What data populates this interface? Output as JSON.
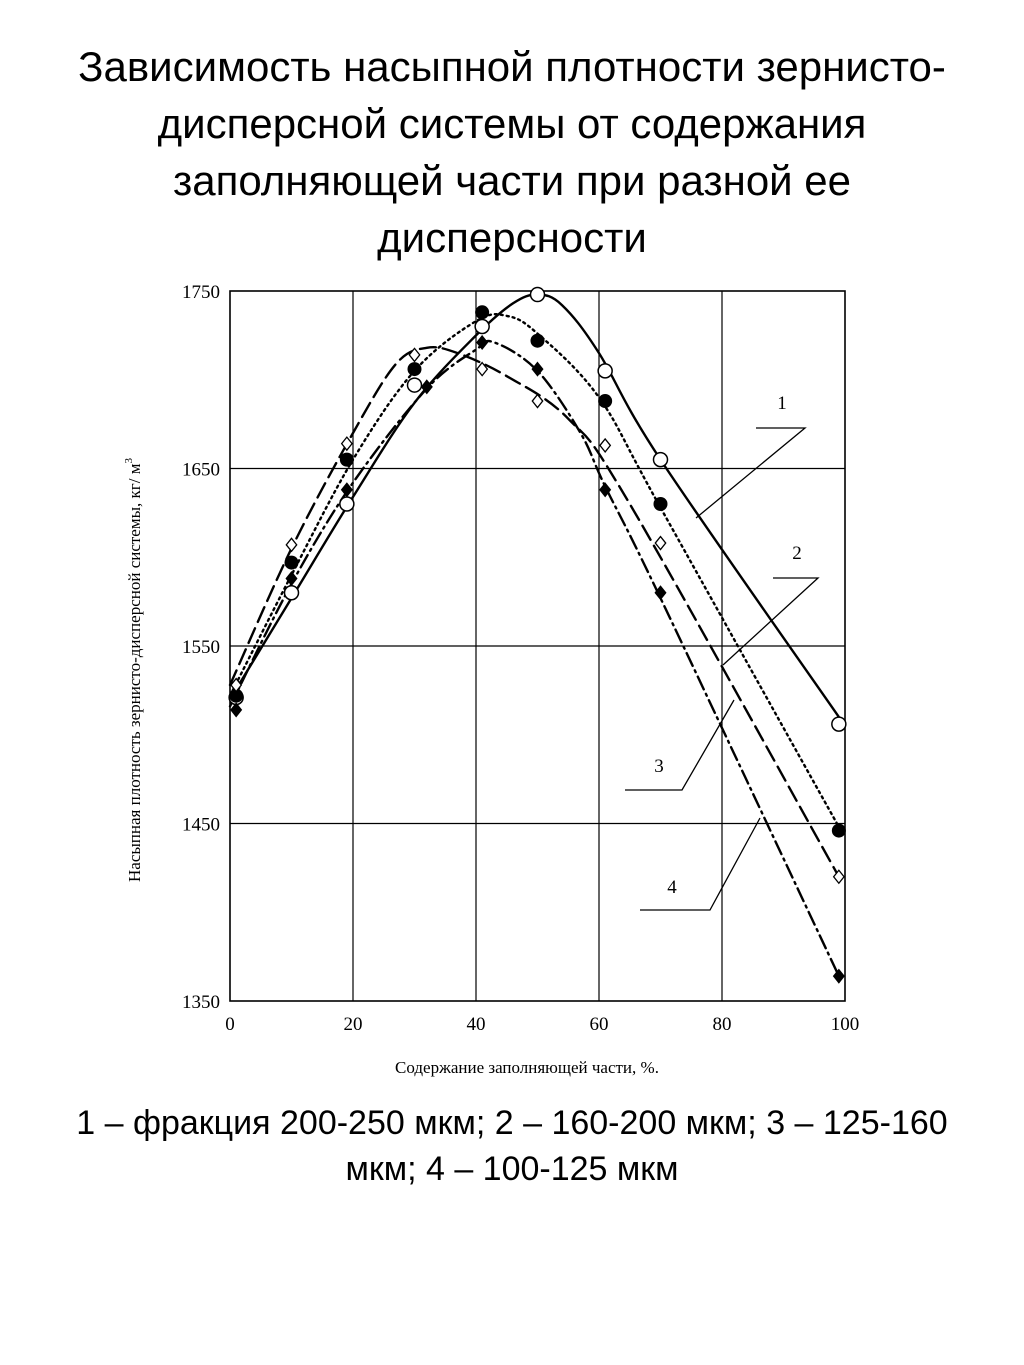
{
  "title": "Зависимость насыпной плотности зернисто-дисперсной системы от содержания заполняющей части при разной ее дисперсности",
  "caption": "1 – фракция 200-250 мкм; 2 – 160-200 мкм; 3 – 125-160 мкм; 4 – 100-125 мкм",
  "chart_data": {
    "type": "line",
    "xlabel": "Содержание заполняющей части, %.",
    "ylabel": "Насыпная плотность зернисто-дисперсной системы, кг/ м",
    "ylabel_sup": "3",
    "xlim": [
      0,
      100
    ],
    "ylim": [
      1350,
      1750
    ],
    "xticks": [
      0,
      20,
      40,
      60,
      80,
      100
    ],
    "yticks": [
      1350,
      1450,
      1550,
      1650,
      1750
    ],
    "grid": true,
    "series": [
      {
        "name": "1",
        "marker": "open-circle",
        "line": "solid",
        "points": [
          [
            1,
            1521
          ],
          [
            10,
            1580
          ],
          [
            19,
            1630
          ],
          [
            30,
            1697
          ],
          [
            41,
            1730
          ],
          [
            50,
            1748
          ],
          [
            61,
            1705
          ],
          [
            70,
            1655
          ],
          [
            99,
            1506
          ]
        ],
        "curve": [
          [
            0,
            1520
          ],
          [
            10,
            1577
          ],
          [
            20,
            1634
          ],
          [
            30,
            1687
          ],
          [
            40,
            1725
          ],
          [
            46,
            1743
          ],
          [
            50,
            1748
          ],
          [
            54,
            1742
          ],
          [
            60,
            1715
          ],
          [
            70,
            1655
          ],
          [
            99,
            1510
          ]
        ]
      },
      {
        "name": "2",
        "marker": "filled-circle",
        "line": "dotted",
        "points": [
          [
            1,
            1522
          ],
          [
            10,
            1597
          ],
          [
            19,
            1655
          ],
          [
            30,
            1706
          ],
          [
            41,
            1738
          ],
          [
            50,
            1722
          ],
          [
            61,
            1688
          ],
          [
            70,
            1630
          ],
          [
            99,
            1446
          ]
        ],
        "curve": [
          [
            0,
            1522
          ],
          [
            10,
            1590
          ],
          [
            20,
            1655
          ],
          [
            30,
            1705
          ],
          [
            40,
            1733
          ],
          [
            45,
            1736
          ],
          [
            50,
            1726
          ],
          [
            60,
            1690
          ],
          [
            70,
            1628
          ],
          [
            99,
            1448
          ]
        ]
      },
      {
        "name": "3",
        "marker": "open-diamond",
        "line": "dashed",
        "points": [
          [
            1,
            1528
          ],
          [
            10,
            1607
          ],
          [
            19,
            1664
          ],
          [
            30,
            1714
          ],
          [
            41,
            1706
          ],
          [
            50,
            1688
          ],
          [
            61,
            1663
          ],
          [
            70,
            1608
          ],
          [
            99,
            1420
          ]
        ],
        "curve": [
          [
            0,
            1528
          ],
          [
            10,
            1605
          ],
          [
            20,
            1670
          ],
          [
            27,
            1709
          ],
          [
            32,
            1718
          ],
          [
            37,
            1715
          ],
          [
            45,
            1702
          ],
          [
            55,
            1678
          ],
          [
            65,
            1630
          ],
          [
            99,
            1420
          ]
        ]
      },
      {
        "name": "4",
        "marker": "filled-diamond",
        "line": "dash-dot",
        "points": [
          [
            1,
            1514
          ],
          [
            10,
            1588
          ],
          [
            19,
            1638
          ],
          [
            32,
            1696
          ],
          [
            41,
            1721
          ],
          [
            50,
            1706
          ],
          [
            61,
            1638
          ],
          [
            70,
            1580
          ],
          [
            99,
            1364
          ]
        ],
        "curve": [
          [
            0,
            1516
          ],
          [
            10,
            1585
          ],
          [
            20,
            1642
          ],
          [
            32,
            1695
          ],
          [
            40,
            1717
          ],
          [
            43,
            1721
          ],
          [
            50,
            1705
          ],
          [
            57,
            1670
          ],
          [
            61,
            1640
          ],
          [
            70,
            1577
          ],
          [
            99,
            1364
          ]
        ]
      }
    ],
    "annotations": [
      {
        "text": "1",
        "series": "1"
      },
      {
        "text": "2",
        "series": "2"
      },
      {
        "text": "3",
        "series": "3"
      },
      {
        "text": "4",
        "series": "4"
      }
    ]
  }
}
